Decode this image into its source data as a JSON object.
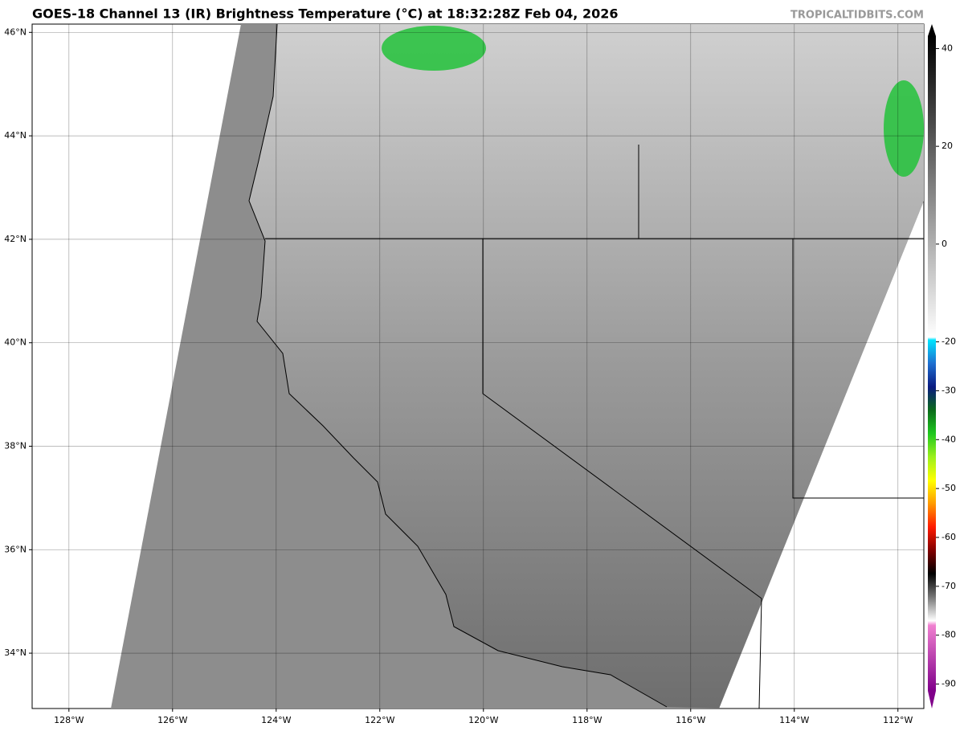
{
  "map": {
    "title": "GOES-18 Channel 13 (IR) Brightness Temperature (°C) at 18:32:28Z Feb 04, 2026",
    "credit": "TROPICALTIDBITS.COM",
    "xlim": [
      -128.71,
      -111.5
    ],
    "ylim": [
      32.93,
      46.16
    ],
    "xticks": [
      {
        "value": -128,
        "label": "128°W"
      },
      {
        "value": -126,
        "label": "126°W"
      },
      {
        "value": -124,
        "label": "124°W"
      },
      {
        "value": -122,
        "label": "122°W"
      },
      {
        "value": -120,
        "label": "120°W"
      },
      {
        "value": -118,
        "label": "118°W"
      },
      {
        "value": -116,
        "label": "116°W"
      },
      {
        "value": -114,
        "label": "114°W"
      },
      {
        "value": -112,
        "label": "112°W"
      }
    ],
    "yticks": [
      {
        "value": 34,
        "label": "34°N"
      },
      {
        "value": 36,
        "label": "36°N"
      },
      {
        "value": 38,
        "label": "38°N"
      },
      {
        "value": 40,
        "label": "40°N"
      },
      {
        "value": 42,
        "label": "42°N"
      },
      {
        "value": 44,
        "label": "44°N"
      },
      {
        "value": 46,
        "label": "46°N"
      }
    ],
    "colorbar": {
      "lim": [
        -95,
        45
      ],
      "ticks": [
        40,
        20,
        0,
        -20,
        -30,
        -40,
        -50,
        -60,
        -70,
        -80,
        -90
      ]
    }
  }
}
